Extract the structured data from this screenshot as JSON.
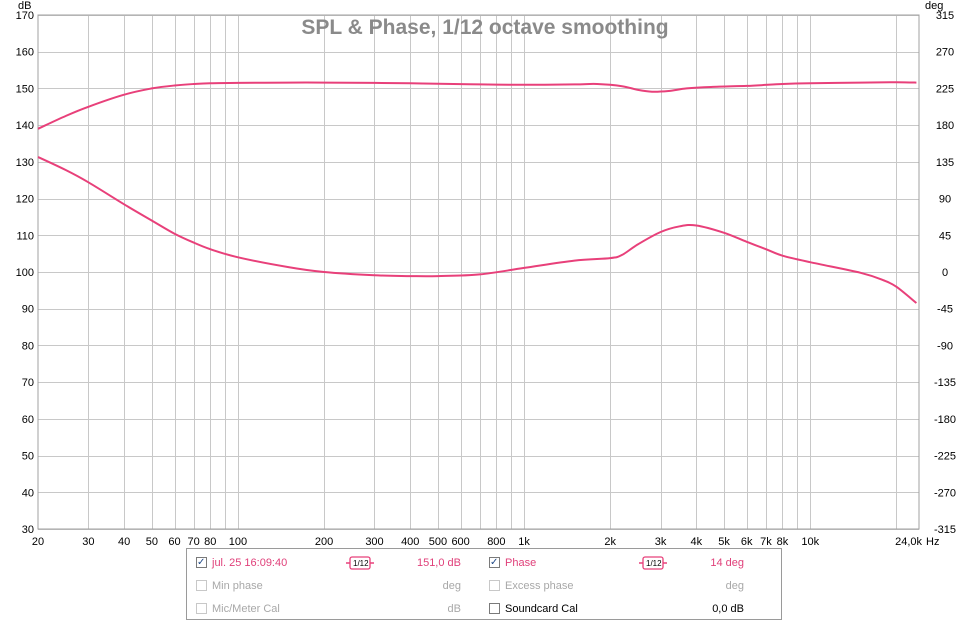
{
  "chart_data": {
    "type": "line",
    "title": "SPL & Phase, 1/12 octave smoothing",
    "x_unit": "Hz",
    "y_left_unit": "dB",
    "y_right_unit": "deg",
    "x_scale": "log",
    "xlim": [
      20,
      24000
    ],
    "ylim_left": [
      30,
      170
    ],
    "ylim_right": [
      -315,
      315
    ],
    "grid": true,
    "x_ticks": [
      {
        "v": 20,
        "label": "20"
      },
      {
        "v": 30,
        "label": "30"
      },
      {
        "v": 40,
        "label": "40"
      },
      {
        "v": 50,
        "label": "50"
      },
      {
        "v": 60,
        "label": "60"
      },
      {
        "v": 70,
        "label": "70"
      },
      {
        "v": 80,
        "label": "80"
      },
      {
        "v": 100,
        "label": "100"
      },
      {
        "v": 200,
        "label": "200"
      },
      {
        "v": 300,
        "label": "300"
      },
      {
        "v": 400,
        "label": "400"
      },
      {
        "v": 500,
        "label": "500"
      },
      {
        "v": 600,
        "label": "600"
      },
      {
        "v": 800,
        "label": "800"
      },
      {
        "v": 1000,
        "label": "1k"
      },
      {
        "v": 2000,
        "label": "2k"
      },
      {
        "v": 3000,
        "label": "3k"
      },
      {
        "v": 4000,
        "label": "4k"
      },
      {
        "v": 5000,
        "label": "5k"
      },
      {
        "v": 6000,
        "label": "6k"
      },
      {
        "v": 7000,
        "label": "7k"
      },
      {
        "v": 8000,
        "label": "8k"
      },
      {
        "v": 10000,
        "label": "10k"
      },
      {
        "v": 24000,
        "label": "24,0k"
      }
    ],
    "y_left_ticks": [
      "170",
      "160",
      "150",
      "140",
      "130",
      "120",
      "110",
      "100",
      "90",
      "80",
      "70",
      "60",
      "50",
      "40",
      "30"
    ],
    "y_right_ticks": [
      "315",
      "270",
      "225",
      "180",
      "135",
      "90",
      "45",
      "0",
      "-45",
      "-90",
      "-135",
      "-180",
      "-225",
      "-270",
      "-315"
    ],
    "series": [
      {
        "name": "jul. 25 16:09:40",
        "axis": "left",
        "color": "#e8407a",
        "points": [
          [
            20,
            139
          ],
          [
            25,
            142.5
          ],
          [
            30,
            145
          ],
          [
            40,
            148.3
          ],
          [
            50,
            150
          ],
          [
            60,
            150.8
          ],
          [
            70,
            151.2
          ],
          [
            80,
            151.4
          ],
          [
            100,
            151.5
          ],
          [
            150,
            151.6
          ],
          [
            200,
            151.6
          ],
          [
            300,
            151.5
          ],
          [
            400,
            151.4
          ],
          [
            500,
            151.3
          ],
          [
            700,
            151.1
          ],
          [
            1000,
            151.0
          ],
          [
            1500,
            151.1
          ],
          [
            1800,
            151.2
          ],
          [
            2200,
            150.6
          ],
          [
            2500,
            149.6
          ],
          [
            2800,
            149.1
          ],
          [
            3200,
            149.3
          ],
          [
            3700,
            150.0
          ],
          [
            4500,
            150.4
          ],
          [
            6000,
            150.7
          ],
          [
            8000,
            151.2
          ],
          [
            10000,
            151.4
          ],
          [
            15000,
            151.6
          ],
          [
            20000,
            151.7
          ],
          [
            23500,
            151.6
          ]
        ]
      },
      {
        "name": "Phase",
        "axis": "right",
        "color": "#e8407a",
        "points": [
          [
            20,
            141
          ],
          [
            25,
            125
          ],
          [
            30,
            110
          ],
          [
            40,
            83
          ],
          [
            50,
            63
          ],
          [
            60,
            47
          ],
          [
            70,
            36
          ],
          [
            80,
            28
          ],
          [
            100,
            18
          ],
          [
            150,
            6
          ],
          [
            200,
            0
          ],
          [
            300,
            -4
          ],
          [
            400,
            -5
          ],
          [
            500,
            -5
          ],
          [
            700,
            -3
          ],
          [
            1000,
            5
          ],
          [
            1500,
            14
          ],
          [
            2000,
            17
          ],
          [
            2200,
            21
          ],
          [
            2500,
            34
          ],
          [
            3000,
            49
          ],
          [
            3500,
            56
          ],
          [
            4000,
            57
          ],
          [
            5000,
            48
          ],
          [
            6000,
            37
          ],
          [
            7000,
            28
          ],
          [
            8000,
            20
          ],
          [
            10000,
            12
          ],
          [
            15000,
            -1
          ],
          [
            18000,
            -10
          ],
          [
            20000,
            -18
          ],
          [
            23500,
            -38
          ]
        ]
      }
    ]
  },
  "legend": {
    "row1": {
      "checked": true,
      "label": "jul. 25 16:09:40",
      "smoothing": "1/12",
      "value": "151,0 dB"
    },
    "row2": {
      "checked": false,
      "label": "Min phase",
      "value": "deg"
    },
    "row3": {
      "checked": false,
      "label": "Mic/Meter Cal",
      "value": "dB"
    },
    "row4": {
      "checked": true,
      "label": "Phase",
      "smoothing": "1/12",
      "value": "14 deg"
    },
    "row5": {
      "checked": false,
      "label": "Excess phase",
      "value": "deg"
    },
    "row6": {
      "checked": false,
      "label": "Soundcard Cal",
      "value": "0,0 dB"
    }
  },
  "colors": {
    "trace": "#e8407a",
    "grid": "#c8c8c8",
    "title": "#8a8a8a"
  }
}
